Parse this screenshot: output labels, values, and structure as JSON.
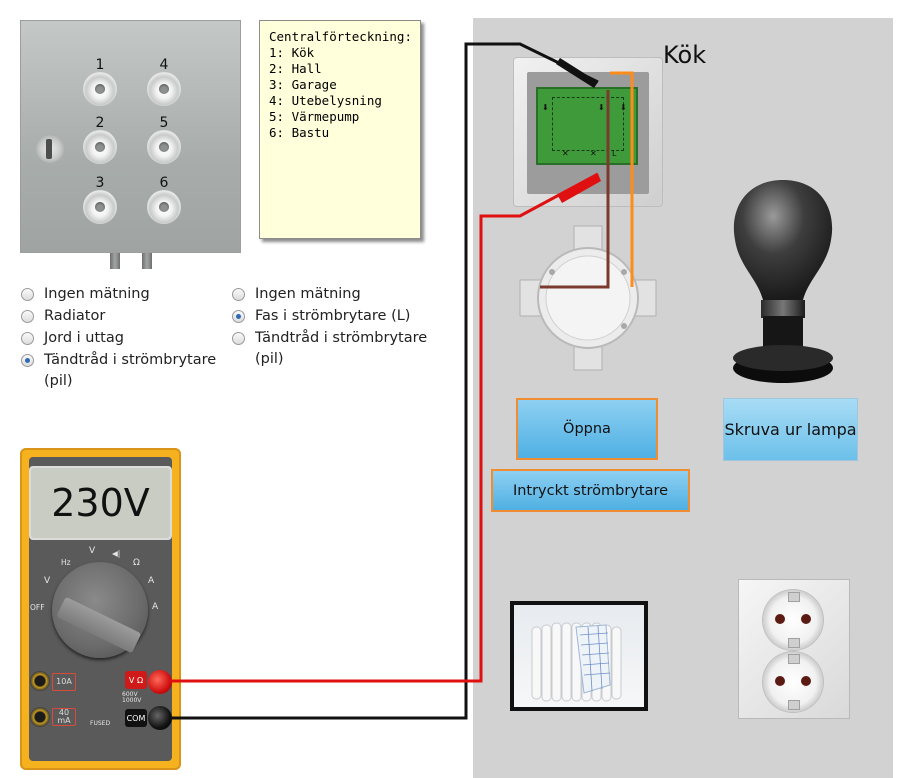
{
  "fusebox": {
    "fuse_numbers": [
      "1",
      "2",
      "3",
      "4",
      "5",
      "6"
    ]
  },
  "legend": {
    "title": "Centralförteckning:",
    "lines": [
      "1: Kök",
      "2: Hall",
      "3: Garage",
      "4: Utebelysning",
      "5: Värmepump",
      "6: Bastu"
    ]
  },
  "measure_left": {
    "options": [
      {
        "label": "Ingen mätning",
        "checked": false
      },
      {
        "label": "Radiator",
        "checked": false
      },
      {
        "label": "Jord i uttag",
        "checked": false
      },
      {
        "label": "Tändtråd i strömbrytare (pil)",
        "checked": true
      }
    ]
  },
  "measure_right": {
    "options": [
      {
        "label": "Ingen mätning",
        "checked": false
      },
      {
        "label": "Fas i strömbrytare (L)",
        "checked": true
      },
      {
        "label": "Tändtråd i strömbrytare (pil)",
        "checked": false
      }
    ]
  },
  "room": {
    "title": "Kök"
  },
  "buttons": {
    "open": "Öppna",
    "pressed_switch": "Intryckt strömbrytare",
    "unscrew_lamp": "Skruva ur lampa"
  },
  "multimeter": {
    "display": "230V",
    "dial_labels": {
      "hz": "Hz",
      "vdc": "V",
      "diode": "◀|",
      "ohm": "Ω",
      "vac": "V",
      "aac": "A",
      "off": "OFF",
      "adc": "A"
    },
    "jack_10a": "10A",
    "jack_40ma": "40 mA",
    "jack_v": "V Ω",
    "jack_com": "COM",
    "rating": "600V 1000V",
    "fused": "FUSED"
  },
  "colors": {
    "probe_red": "#e01010",
    "probe_black": "#111111",
    "wire_orange": "#ff8c1a",
    "wire_brown": "#7a3b2e"
  }
}
